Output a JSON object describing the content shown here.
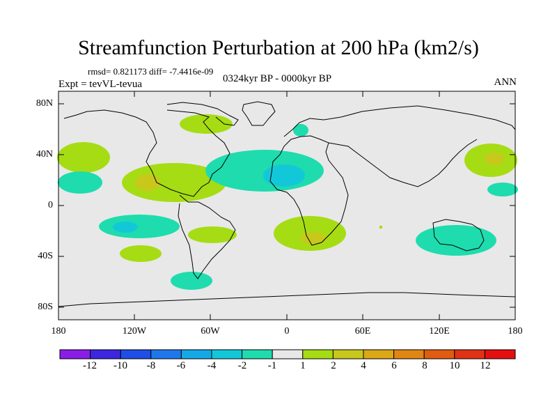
{
  "title": "Streamfunction Perturbation at 200 hPa (km2/s)",
  "stats": "rmsd= 0.821173 diff= -7.4416e-09",
  "expt": "Expt = tevVL-tevua",
  "period": "0324kyr BP - 0000kyr BP",
  "season": "ANN",
  "y_axis_labels": [
    "80N",
    "40N",
    "0",
    "40S",
    "80S"
  ],
  "x_axis_labels": [
    "180",
    "120W",
    "60W",
    "0",
    "60E",
    "120E",
    "180"
  ],
  "colorbar": {
    "labels": [
      "-12",
      "-10",
      "-8",
      "-6",
      "-4",
      "-2",
      "-1",
      "1",
      "2",
      "4",
      "6",
      "8",
      "10",
      "12"
    ],
    "colors": [
      "#8a1ee6",
      "#3d26e0",
      "#1e4ee6",
      "#1e78eb",
      "#14a8e6",
      "#12c8d8",
      "#1edcae",
      "#e8e8e8",
      "#a6dc14",
      "#c8c81c",
      "#dca816",
      "#e08614",
      "#e05c10",
      "#e03214",
      "#e60f0f"
    ]
  },
  "colors": {
    "land": "#e8e8e8",
    "coast": "#000000"
  }
}
